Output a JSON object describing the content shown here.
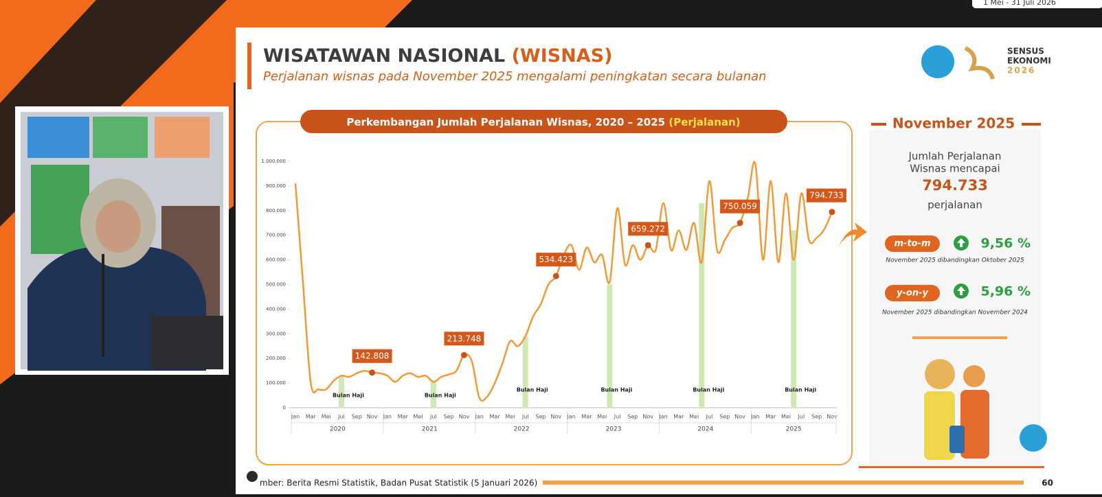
{
  "top_badge": "1 Mei - 31 Juli 2026",
  "slide": {
    "title": "WISATAWAN NASIONAL",
    "title_highlight": "(WISNAS)",
    "subtitle": "Perjalanan wisnas pada November 2025 mengalami peningkatan secara bulanan",
    "logo_text": [
      "SENSUS",
      "EKONOMI",
      "2026"
    ],
    "source": "mber: Berita Resmi Statistik, Badan Pusat Statistik (5 Januari 2026)",
    "page": "60"
  },
  "chart_data": {
    "type": "line",
    "title": "Perkembangan Jumlah Perjalanan Wisnas, 2020 – 2025",
    "title_unit": "(Perjalanan)",
    "categories": [
      "Jan",
      null,
      "Mar",
      null,
      "Mei",
      null,
      "Jul",
      null,
      "Sep",
      null,
      "Nov",
      null,
      "Jan",
      null,
      "Mar",
      null,
      "Mei",
      null,
      "Jul",
      null,
      "Sep",
      null,
      "Nov",
      null,
      "Jan",
      null,
      "Mar",
      null,
      "Mei",
      null,
      "Jul",
      null,
      "Sep",
      null,
      "Nov",
      null,
      "Jan",
      null,
      "Mar",
      null,
      "Mei",
      null,
      "Jul",
      null,
      "Sep",
      null,
      "Nov",
      null,
      "Jan",
      null,
      "Mar",
      null,
      "Mei",
      null,
      "Jul",
      null,
      "Sep",
      null,
      "Nov",
      null,
      "Jan",
      null,
      "Mar",
      null,
      "Mei",
      null,
      "Jul",
      null,
      "Sep",
      null,
      "Nov"
    ],
    "year_groups": [
      "2020",
      "2021",
      "2022",
      "2023",
      "2024",
      "2025"
    ],
    "ylim": [
      0,
      1000000
    ],
    "yticks": [
      0,
      {
        "value": 100000,
        "label": "100.000"
      },
      {
        "value": 200000,
        "label": "200.000"
      },
      {
        "value": 300000,
        "label": "300.000"
      },
      {
        "value": 400000,
        "label": "400.000"
      },
      {
        "value": 500000,
        "label": "500.000"
      },
      {
        "value": 600000,
        "label": "600.000"
      },
      {
        "value": 700000,
        "label": "700.000"
      },
      {
        "value": 800000,
        "label": "800.000"
      },
      {
        "value": 900000,
        "label": "900.000"
      },
      {
        "value": 1000000,
        "label": "1.000.000"
      }
    ],
    "series": [
      {
        "color": "#f29a38",
        "values": [
          910000,
          500000,
          100000,
          75000,
          75000,
          110000,
          130000,
          125000,
          140000,
          150000,
          142808,
          140000,
          130000,
          105000,
          130000,
          140000,
          125000,
          130000,
          105000,
          125000,
          135000,
          150000,
          213748,
          190000,
          40000,
          45000,
          100000,
          180000,
          270000,
          250000,
          290000,
          370000,
          420000,
          500000,
          534423,
          620000,
          660000,
          560000,
          650000,
          590000,
          620000,
          510000,
          810000,
          580000,
          660000,
          600000,
          659272,
          640000,
          830000,
          640000,
          720000,
          640000,
          750000,
          590000,
          920000,
          640000,
          680000,
          730000,
          750059,
          850000,
          990000,
          600000,
          920000,
          590000,
          870000,
          600000,
          870000,
          680000,
          690000,
          725000,
          794733
        ],
        "value_labels": [
          null,
          null,
          null,
          null,
          null,
          null,
          null,
          null,
          null,
          null,
          "142.808",
          null,
          null,
          null,
          null,
          null,
          null,
          null,
          null,
          null,
          null,
          null,
          "213.748",
          null,
          null,
          null,
          null,
          null,
          null,
          null,
          null,
          null,
          null,
          null,
          "534.423",
          null,
          null,
          null,
          null,
          null,
          null,
          null,
          null,
          null,
          null,
          null,
          "659.272",
          null,
          null,
          null,
          null,
          null,
          null,
          null,
          null,
          null,
          null,
          null,
          "750.059",
          null,
          null,
          null,
          null,
          null,
          null,
          null,
          null,
          null,
          null,
          null,
          "794.733"
        ]
      },
      {
        "type": "bar",
        "name": "Bulan Haji",
        "color": "#cfe8b4",
        "values": [
          null,
          null,
          null,
          null,
          null,
          null,
          130000,
          null,
          null,
          null,
          null,
          null,
          null,
          null,
          null,
          null,
          null,
          null,
          110000,
          null,
          null,
          null,
          null,
          null,
          null,
          null,
          null,
          null,
          null,
          null,
          290000,
          null,
          null,
          null,
          null,
          null,
          null,
          null,
          null,
          null,
          null,
          500000,
          null,
          null,
          null,
          null,
          null,
          null,
          null,
          null,
          null,
          null,
          null,
          830000,
          null,
          null,
          null,
          null,
          null,
          null,
          null,
          null,
          null,
          null,
          null,
          720000,
          null,
          null,
          null,
          null,
          null
        ]
      }
    ]
  },
  "panel": {
    "heading": "November 2025",
    "lead": [
      "Jumlah Perjalanan",
      "Wisnas mencapai"
    ],
    "value": "794.733",
    "unit": "perjalanan",
    "mtm_label": "m-to-m",
    "mtm_value": "9,56 %",
    "mtm_note": "November 2025 dibandingkan Oktober 2025",
    "yoy_label": "y-on-y",
    "yoy_value": "5,96 %",
    "yoy_note": "November 2025 dibandingkan November 2024"
  }
}
